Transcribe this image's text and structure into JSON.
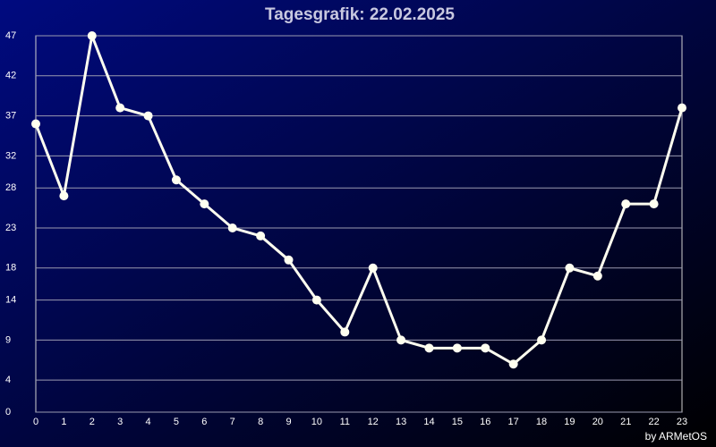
{
  "chart_data": {
    "type": "line",
    "title": "Tagesgrafik: 22.02.2025",
    "footer": "by ARMetOS",
    "x": [
      0,
      1,
      2,
      3,
      4,
      5,
      6,
      7,
      8,
      9,
      10,
      11,
      12,
      13,
      14,
      15,
      16,
      17,
      18,
      19,
      20,
      21,
      22,
      23
    ],
    "xlim": [
      0,
      23
    ],
    "series": [
      {
        "color": "#fffff0",
        "values": [
          36,
          27,
          47,
          38,
          37,
          29,
          26,
          23,
          22,
          19,
          14,
          10,
          18,
          9,
          8,
          8,
          8,
          6,
          9,
          18,
          17,
          26,
          26,
          38
        ]
      }
    ],
    "ylim": [
      0,
      47
    ],
    "yticks": [
      0,
      4,
      9,
      14,
      18,
      23,
      28,
      32,
      37,
      42,
      47
    ],
    "grid": true
  }
}
